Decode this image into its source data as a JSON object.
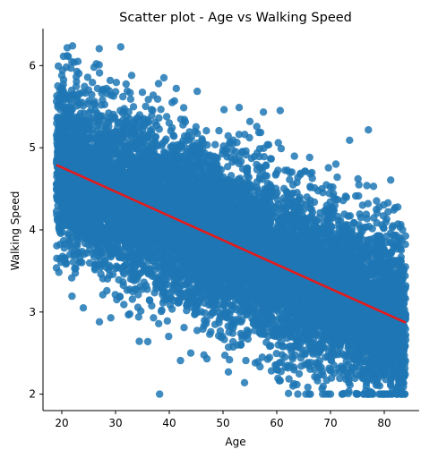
{
  "chart_data": {
    "type": "scatter",
    "title": "Scatter plot - Age vs Walking Speed",
    "xlabel": "Age",
    "ylabel": "Walking Speed",
    "xlim": [
      16.5,
      86.5
    ],
    "ylim": [
      1.8,
      6.45
    ],
    "xticks": [
      20,
      30,
      40,
      50,
      60,
      70,
      80
    ],
    "yticks": [
      2,
      3,
      4,
      5,
      6
    ],
    "grid": false,
    "point_color": "#1f77b4",
    "point_count": 10000,
    "x_range": [
      19,
      84
    ],
    "y_floor": 2.0,
    "noise_sd": 0.5,
    "regression": {
      "color": "#e41a1c",
      "x": [
        19,
        84
      ],
      "y": [
        4.79,
        2.87
      ]
    },
    "sample_points": [
      {
        "x": 22,
        "y": 6.24
      },
      {
        "x": 21,
        "y": 6.12
      },
      {
        "x": 23,
        "y": 6.05
      },
      {
        "x": 26,
        "y": 5.98
      },
      {
        "x": 20,
        "y": 5.88
      },
      {
        "x": 33,
        "y": 5.88
      },
      {
        "x": 29,
        "y": 5.82
      },
      {
        "x": 38,
        "y": 5.78
      },
      {
        "x": 37,
        "y": 5.64
      },
      {
        "x": 53,
        "y": 5.49
      },
      {
        "x": 55,
        "y": 5.32
      },
      {
        "x": 71,
        "y": 4.8
      },
      {
        "x": 78,
        "y": 4.53
      },
      {
        "x": 82,
        "y": 4.27
      },
      {
        "x": 27,
        "y": 2.88
      },
      {
        "x": 24,
        "y": 3.05
      },
      {
        "x": 36,
        "y": 2.64
      },
      {
        "x": 44,
        "y": 2.5
      },
      {
        "x": 47,
        "y": 2.43
      },
      {
        "x": 51,
        "y": 2.27
      },
      {
        "x": 54,
        "y": 2.14
      },
      {
        "x": 56,
        "y": 2.38
      },
      {
        "x": 60,
        "y": 2.3
      },
      {
        "x": 63,
        "y": 2.1
      },
      {
        "x": 66,
        "y": 2.0
      },
      {
        "x": 70,
        "y": 2.0
      },
      {
        "x": 75,
        "y": 2.0
      },
      {
        "x": 80,
        "y": 2.0
      },
      {
        "x": 83,
        "y": 2.0
      },
      {
        "x": 84,
        "y": 3.32
      }
    ]
  }
}
